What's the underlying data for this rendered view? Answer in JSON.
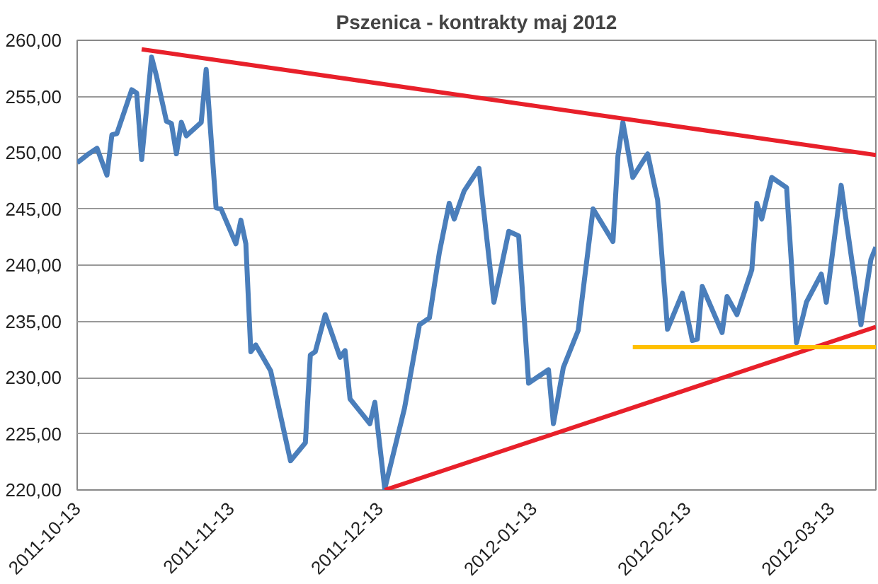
{
  "chart_data": {
    "type": "line",
    "title": "Pszenica - kontrakty maj 2012",
    "x": [
      "2011-10-13",
      "2011-10-15",
      "2011-10-17",
      "2011-10-19",
      "2011-10-20",
      "2011-10-21",
      "2011-10-24",
      "2011-10-25",
      "2011-10-26",
      "2011-10-28",
      "2011-10-29",
      "2011-10-31",
      "2011-11-01",
      "2011-11-02",
      "2011-11-03",
      "2011-11-04",
      "2011-11-07",
      "2011-11-08",
      "2011-11-10",
      "2011-11-11",
      "2011-11-14",
      "2011-11-15",
      "2011-11-16",
      "2011-11-17",
      "2011-11-18",
      "2011-11-21",
      "2011-11-25",
      "2011-11-28",
      "2011-11-29",
      "2011-11-30",
      "2011-12-02",
      "2011-12-05",
      "2011-12-06",
      "2011-12-07",
      "2011-12-11",
      "2011-12-12",
      "2011-12-14",
      "2011-12-18",
      "2011-12-21",
      "2011-12-23",
      "2011-12-25",
      "2011-12-27",
      "2011-12-28",
      "2011-12-30",
      "2012-01-02",
      "2012-01-05",
      "2012-01-08",
      "2012-01-10",
      "2012-01-12",
      "2012-01-16",
      "2012-01-17",
      "2012-01-19",
      "2012-01-22",
      "2012-01-25",
      "2012-01-29",
      "2012-01-30",
      "2012-01-31",
      "2012-02-02",
      "2012-02-05",
      "2012-02-07",
      "2012-02-09",
      "2012-02-12",
      "2012-02-14",
      "2012-02-15",
      "2012-02-16",
      "2012-02-20",
      "2012-02-21",
      "2012-02-23",
      "2012-02-26",
      "2012-02-27",
      "2012-02-28",
      "2012-03-01",
      "2012-03-04",
      "2012-03-06",
      "2012-03-08",
      "2012-03-11",
      "2012-03-12",
      "2012-03-15",
      "2012-03-19",
      "2012-03-21",
      "2012-03-22"
    ],
    "series": [
      {
        "color": "#4a7ebb",
        "values": [
          249.1,
          249.8,
          250.4,
          248.0,
          251.6,
          251.7,
          255.6,
          255.3,
          249.4,
          258.5,
          256.8,
          252.8,
          252.6,
          249.9,
          252.7,
          251.5,
          252.7,
          257.4,
          245.1,
          245.0,
          241.9,
          244.0,
          241.9,
          232.3,
          232.9,
          230.6,
          222.6,
          224.2,
          232.0,
          232.3,
          235.6,
          231.8,
          232.4,
          228.1,
          225.9,
          227.8,
          220.1,
          227.3,
          234.7,
          235.3,
          241.1,
          245.5,
          244.1,
          246.6,
          248.6,
          236.7,
          243.0,
          242.6,
          229.5,
          230.7,
          225.9,
          230.9,
          234.2,
          245.0,
          242.1,
          249.7,
          252.7,
          247.8,
          249.9,
          245.8,
          234.3,
          237.5,
          233.3,
          233.4,
          238.1,
          234.0,
          237.2,
          235.6,
          239.6,
          245.5,
          244.1,
          247.8,
          246.9,
          233.1,
          236.7,
          239.2,
          236.7,
          247.1,
          234.7,
          240.5,
          241.6
        ]
      },
      {
        "type": "line",
        "color": "#e8202a",
        "x": [
          "2011-10-26",
          "2012-03-22"
        ],
        "values": [
          259.2,
          249.8
        ]
      },
      {
        "type": "line",
        "color": "#e8202a",
        "x": [
          "2011-12-14",
          "2012-03-22"
        ],
        "values": [
          220.0,
          234.5
        ]
      },
      {
        "type": "line",
        "color": "#ffc000",
        "x": [
          "2012-02-02",
          "2012-03-22"
        ],
        "values": [
          232.7,
          232.7
        ]
      }
    ],
    "xlim": [
      "2011-10-13",
      "2012-03-22"
    ],
    "xticks": [
      "2011-10-13",
      "2011-11-13",
      "2011-12-13",
      "2012-01-13",
      "2012-02-13",
      "2012-03-13"
    ],
    "ylim": [
      220,
      260
    ],
    "yticks": [
      {
        "value": 220,
        "label": "220,00"
      },
      {
        "value": 225,
        "label": "225,00"
      },
      {
        "value": 230,
        "label": "230,00"
      },
      {
        "value": 235,
        "label": "235,00"
      },
      {
        "value": 240,
        "label": "240,00"
      },
      {
        "value": 245,
        "label": "245,00"
      },
      {
        "value": 250,
        "label": "250,00"
      },
      {
        "value": 255,
        "label": "255,00"
      },
      {
        "value": 260,
        "label": "260,00"
      }
    ],
    "grid": "y",
    "marker": "none",
    "line_style": "solid"
  }
}
